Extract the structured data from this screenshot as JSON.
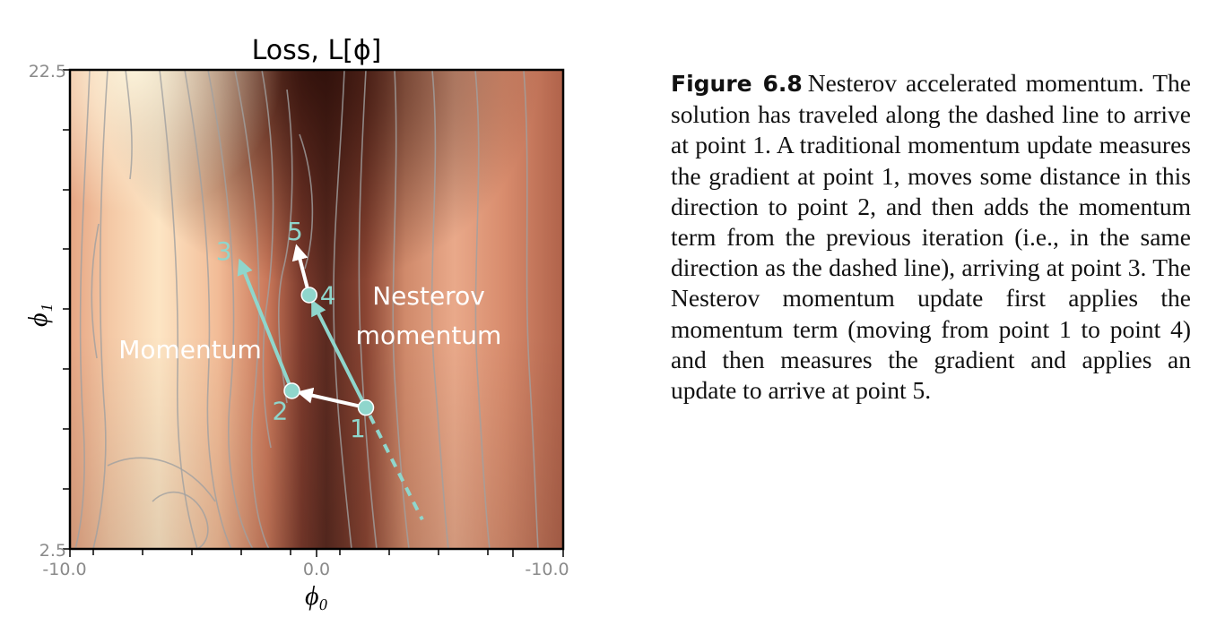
{
  "plot": {
    "title": "Loss, L[ϕ]",
    "xlabel": "ϕ₀",
    "ylabel": "ϕ₁",
    "xticks": [
      "-10.0",
      "0.0",
      "-10.0"
    ],
    "yticks": [
      "22.5",
      "2.5"
    ],
    "labels": {
      "momentum": "Momentum",
      "nesterov_line1": "Nesterov",
      "nesterov_line2": "momentum"
    },
    "points": [
      {
        "id": "1",
        "phi0": 2.0,
        "phi1": 8.4
      },
      {
        "id": "2",
        "phi0": -1.0,
        "phi1": 9.1
      },
      {
        "id": "3",
        "phi0": -3.1,
        "phi1": 14.5
      },
      {
        "id": "4",
        "phi0": -0.3,
        "phi1": 13.1
      },
      {
        "id": "5",
        "phi0": -0.8,
        "phi1": 15.1
      }
    ],
    "colors": {
      "path": "#8fd6cc",
      "arrow": "#ffffff",
      "label_text": "#ffffff",
      "point_label": "#8fd6cc",
      "contour": "#a0a0a0"
    }
  },
  "caption": {
    "label": "Figure 6.8",
    "text": "Nesterov accelerated momentum. The solution has traveled along the dashed line to arrive at point 1. A traditional momentum update measures the gradient at point 1, moves some distance in this direction to point 2, and then adds the momentum term from the previous iteration (i.e., in the same direction as the dashed line), arriving at point 3. The Nesterov momentum update first applies the momentum term (moving from point 1 to point 4) and then measures the gradient and applies an update to arrive at point 5."
  }
}
